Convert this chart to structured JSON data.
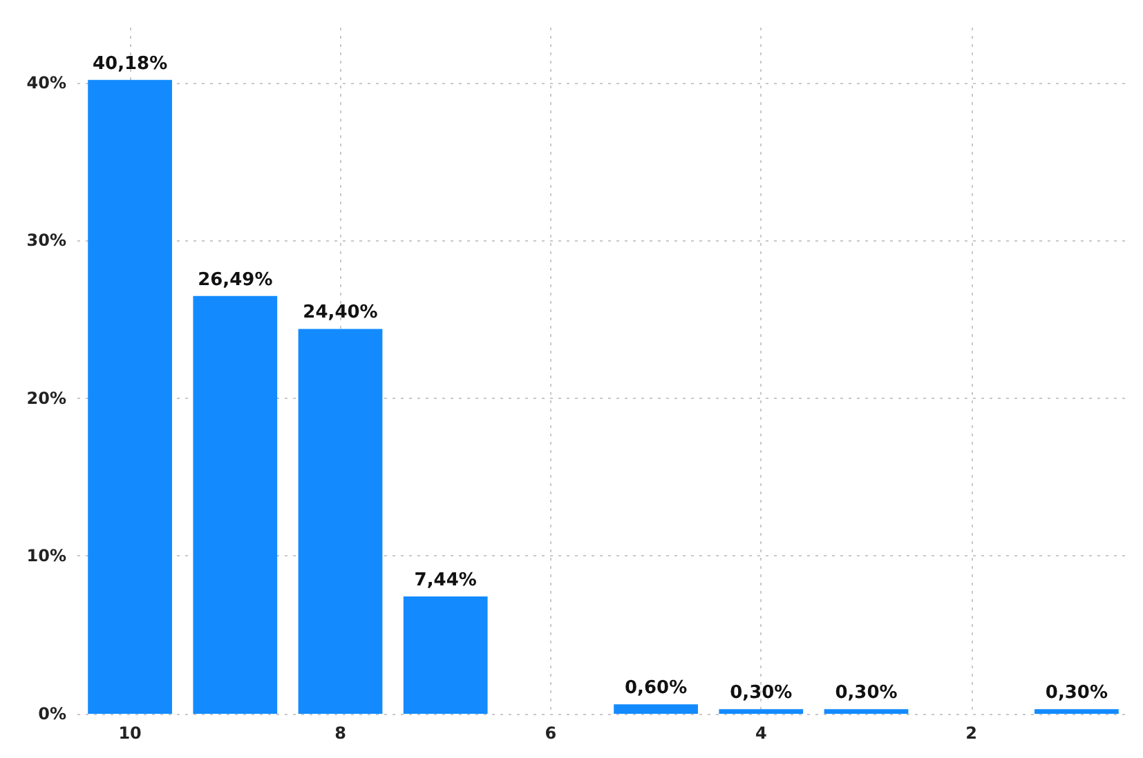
{
  "chart_data": {
    "type": "bar",
    "categories": [
      "10",
      null,
      "8",
      null,
      "6",
      null,
      "4",
      null,
      "2",
      null
    ],
    "values": [
      40.18,
      26.49,
      24.4,
      7.44,
      null,
      0.6,
      0.3,
      0.3,
      null,
      0.3
    ],
    "value_labels": [
      "40,18%",
      "26,49%",
      "24,40%",
      "7,44%",
      null,
      "0,60%",
      "0,30%",
      "0,30%",
      null,
      "0,30%"
    ],
    "color": "#138bff",
    "ylim": [
      0,
      43.5
    ],
    "yticks": [
      {
        "value": 0,
        "label": "0%"
      },
      {
        "value": 10,
        "label": "10%"
      },
      {
        "value": 20,
        "label": "20%"
      },
      {
        "value": 30,
        "label": "30%"
      },
      {
        "value": 40,
        "label": "40%"
      }
    ],
    "grid": true
  }
}
